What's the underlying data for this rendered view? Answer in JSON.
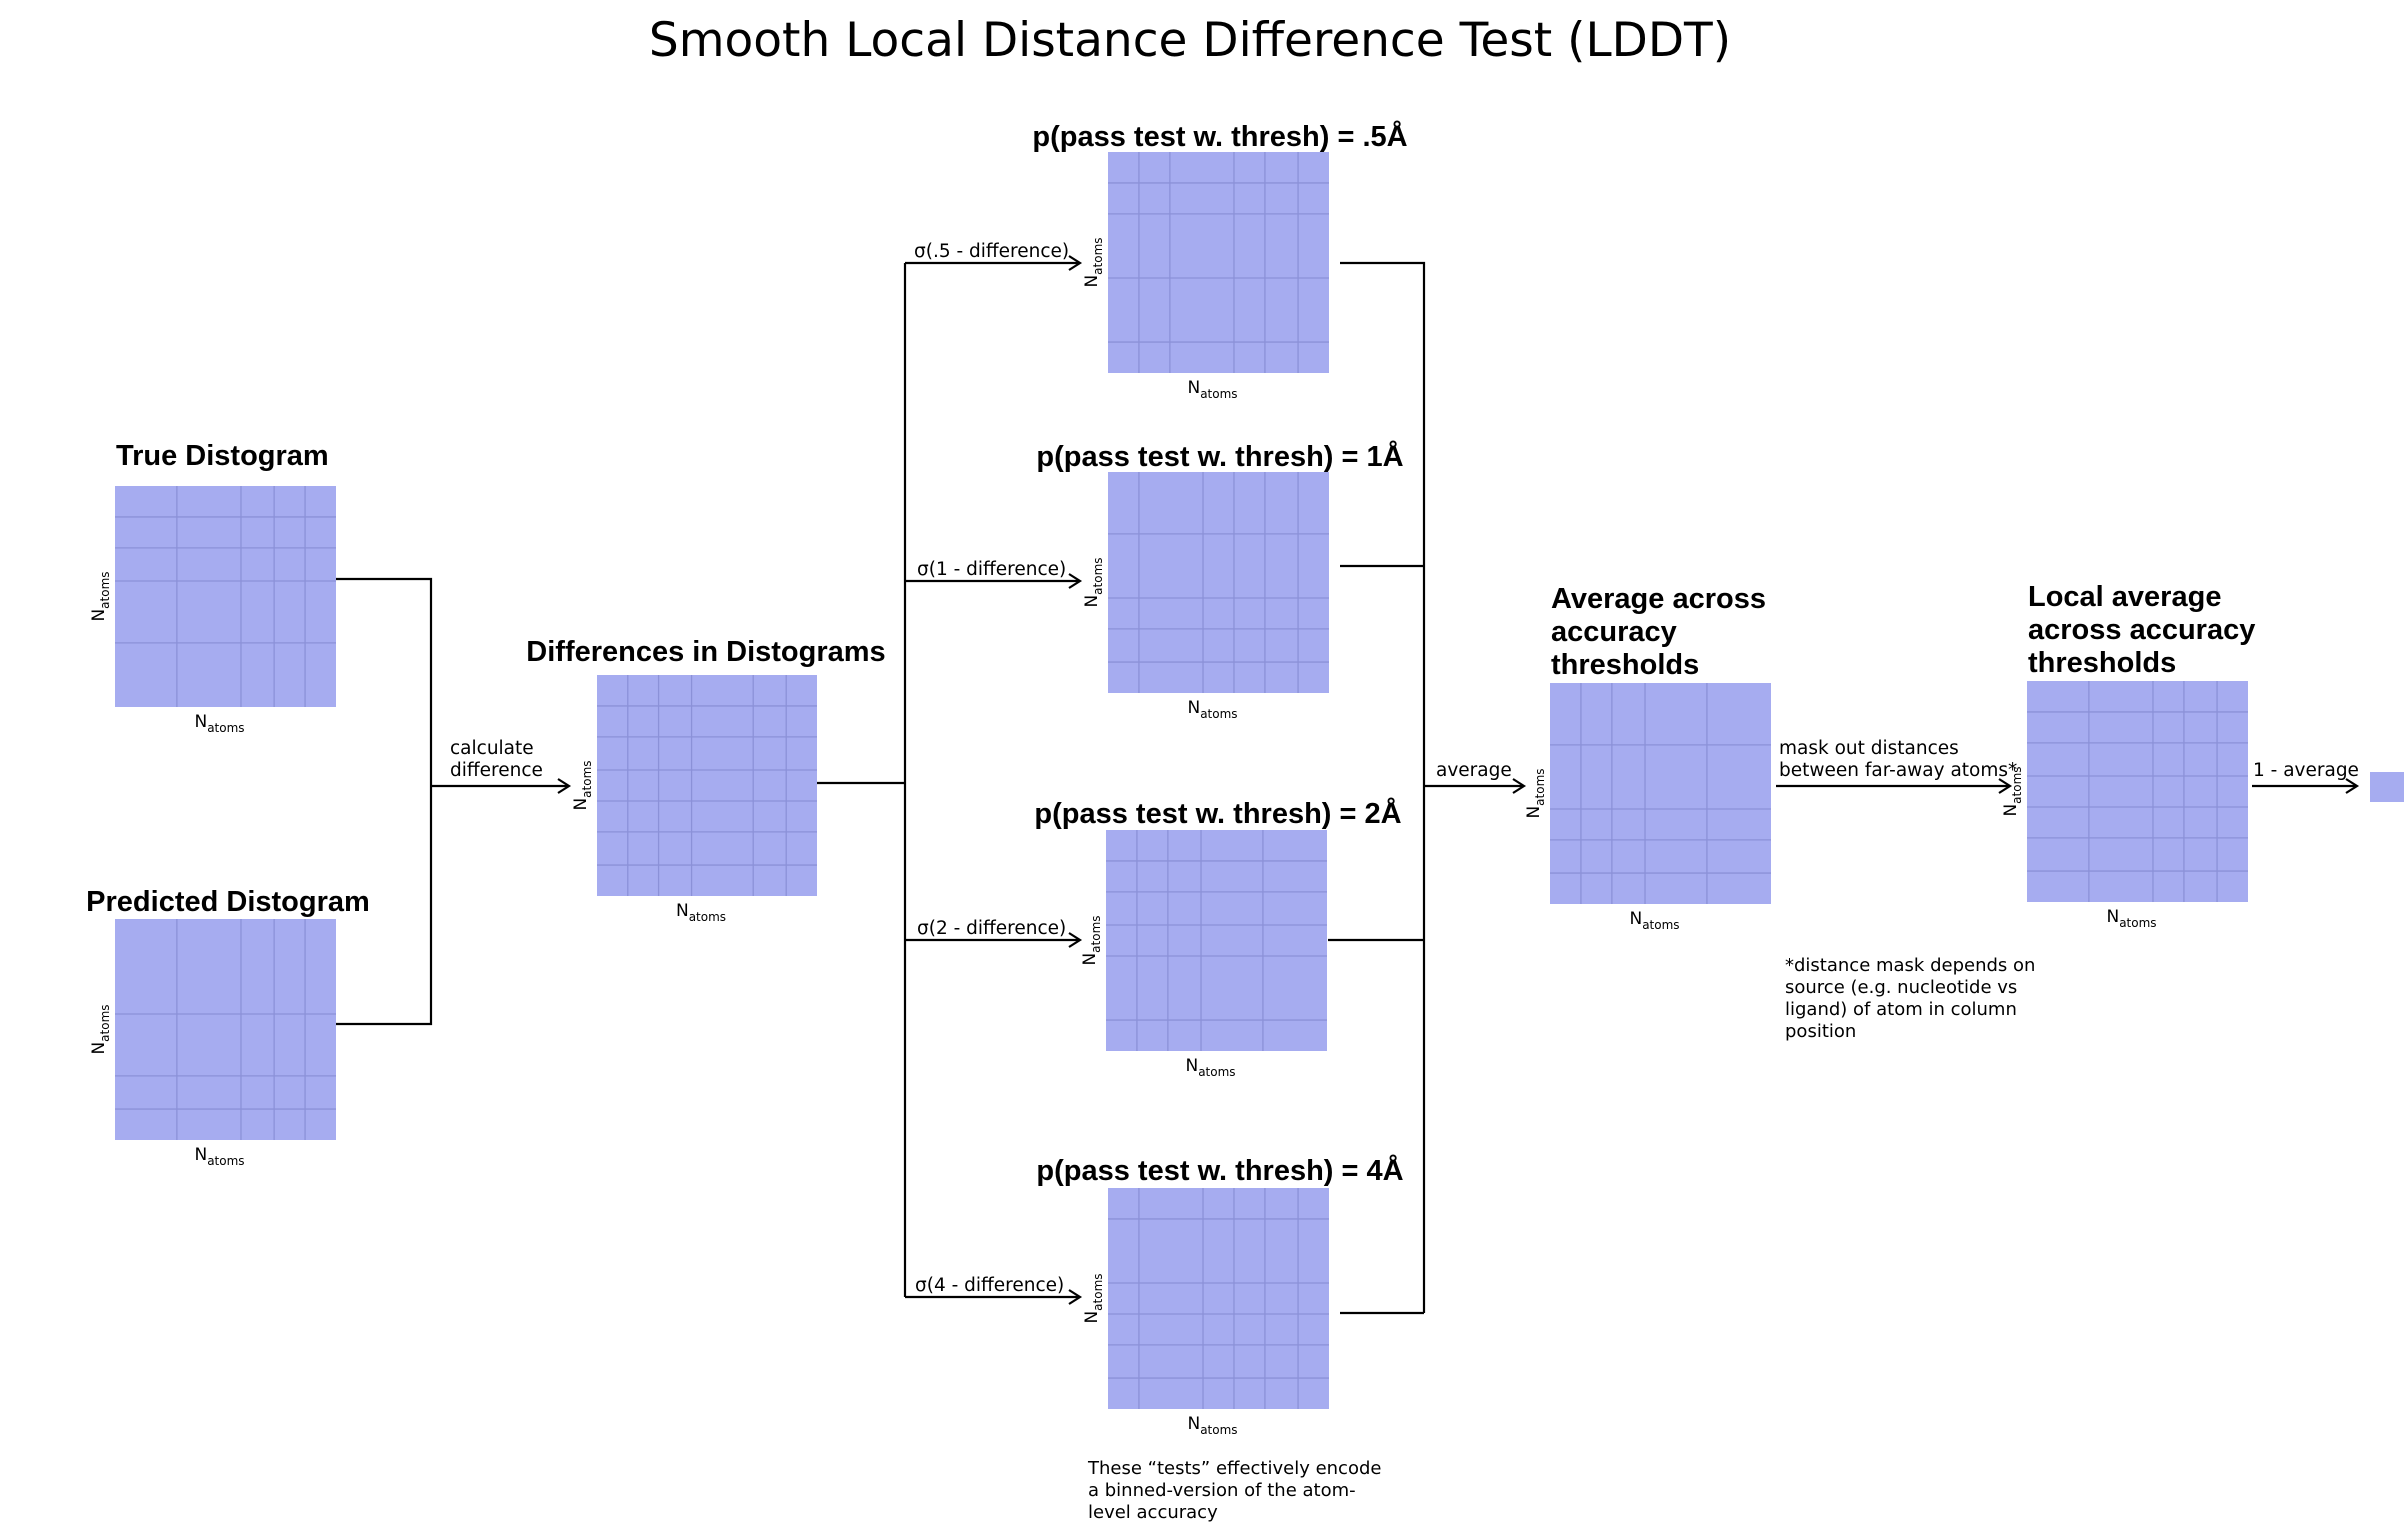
{
  "title": "Smooth Local Distance Difference Test (LDDT)",
  "axis_label": {
    "main": "N",
    "sub": "atoms"
  },
  "matrices": {
    "true_distogram": {
      "heading": [
        "True Distogram"
      ]
    },
    "predicted_distogram": {
      "heading": [
        "Predicted Distogram"
      ]
    },
    "differences": {
      "heading": [
        "Differences in Distograms"
      ]
    },
    "thresh_05": {
      "heading": [
        "p(pass test w. thresh) = .5Å"
      ]
    },
    "thresh_1": {
      "heading": [
        "p(pass test w. thresh) = 1Å"
      ]
    },
    "thresh_2": {
      "heading": [
        "p(pass test w. thresh) = 2Å"
      ]
    },
    "thresh_4": {
      "heading": [
        "p(pass test w. thresh) = 4Å"
      ]
    },
    "average": {
      "heading": [
        "Average across",
        "accuracy",
        "thresholds"
      ]
    },
    "local_average": {
      "heading": [
        "Local average",
        "across accuracy",
        "thresholds"
      ]
    }
  },
  "edges": {
    "calculate_difference": [
      "calculate",
      "difference"
    ],
    "sigma_05": "σ(.5 - difference)",
    "sigma_1": "σ(1 - difference)",
    "sigma_2": "σ(2 - difference)",
    "sigma_4": "σ(4 - difference)",
    "average": "average",
    "mask_out": [
      "mask out distances",
      "between far-away atoms*"
    ],
    "one_minus_average": "1 - average"
  },
  "notes": {
    "tests_note": [
      "These “tests” effectively encode",
      "a binned-version of the atom-",
      "level accuracy"
    ],
    "mask_note": [
      "*distance mask depends on",
      "source (e.g. nucleotide vs",
      "ligand) of atom in column",
      "position"
    ]
  },
  "colors": {
    "matrix_fill": "#a6acf0",
    "grid_line": "#8b91d8",
    "connector": "#000000"
  }
}
